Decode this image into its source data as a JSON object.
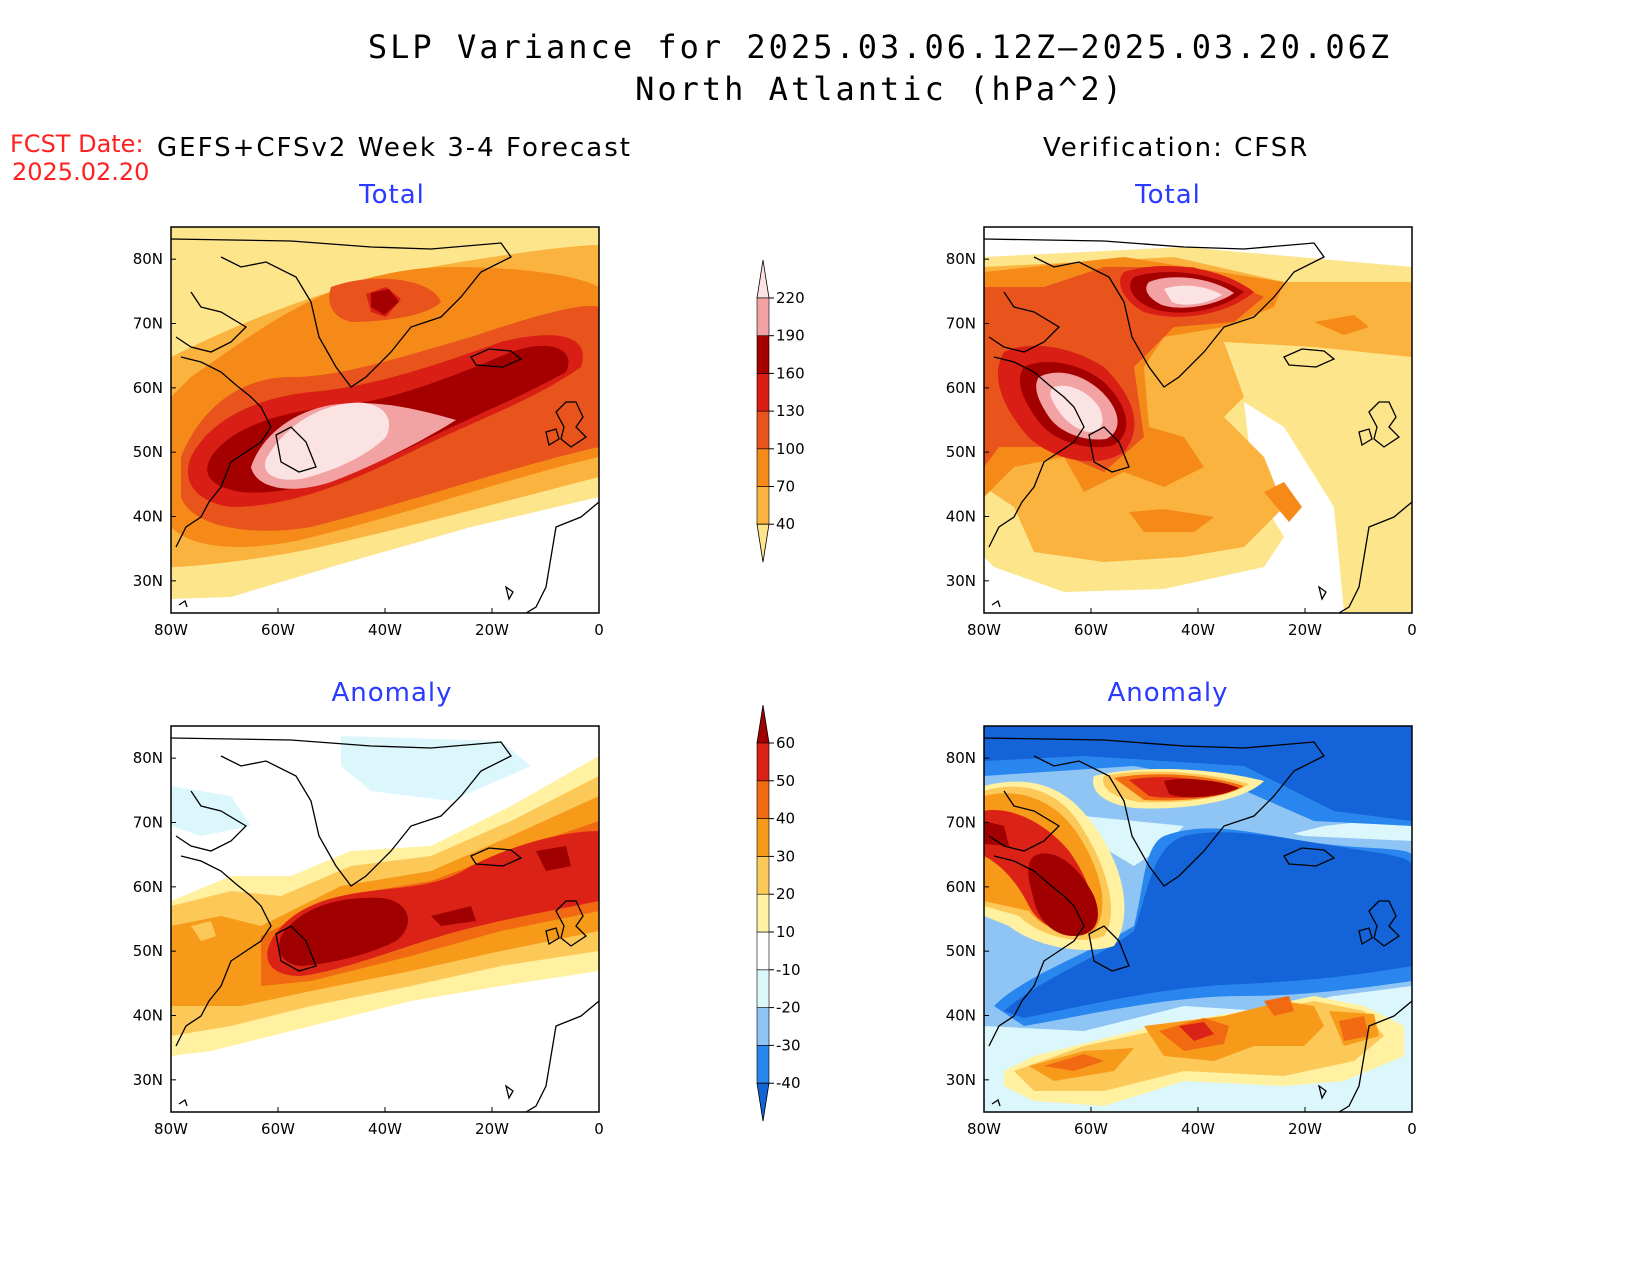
{
  "header": {
    "title_line1": "SLP Variance for 2025.03.06.12Z–2025.03.20.06Z",
    "title_line2": "North Atlantic (hPa^2)",
    "fcst_label": "FCST Date:",
    "fcst_date": "2025.02.20",
    "left_subtitle": "GEFS+CFSv2 Week 3-4 Forecast",
    "right_subtitle": "Verification: CFSR"
  },
  "panels": {
    "top_left_title": "Total",
    "top_right_title": "Total",
    "bottom_left_title": "Anomaly",
    "bottom_right_title": "Anomaly"
  },
  "axes": {
    "lon_labels": [
      "80W",
      "60W",
      "40W",
      "20W",
      "0"
    ],
    "lat_labels": [
      "80N",
      "70N",
      "60N",
      "50N",
      "40N",
      "30N"
    ],
    "lon_range": [
      -80,
      0
    ],
    "lat_range": [
      25,
      85
    ]
  },
  "colorbars": {
    "total": {
      "levels": [
        "40",
        "70",
        "100",
        "130",
        "160",
        "190",
        "220"
      ],
      "colors": [
        "#fde58c",
        "#fbb33f",
        "#f68a19",
        "#e8541c",
        "#d91e15",
        "#a50000",
        "#f2a2a3",
        "#fce3e3"
      ]
    },
    "anomaly": {
      "levels": [
        "-40",
        "-30",
        "-20",
        "-10",
        "10",
        "20",
        "30",
        "40",
        "50",
        "60"
      ],
      "colors": [
        "#1463d8",
        "#2a86ef",
        "#8fc5f4",
        "#dcf7fb",
        "#ffffff",
        "#fff1a0",
        "#fcc858",
        "#f79a1a",
        "#f16a12",
        "#db2217",
        "#a10000"
      ]
    }
  },
  "colors": {
    "title_blue": "#2a3aff",
    "fcst_red": "#ff2020"
  }
}
